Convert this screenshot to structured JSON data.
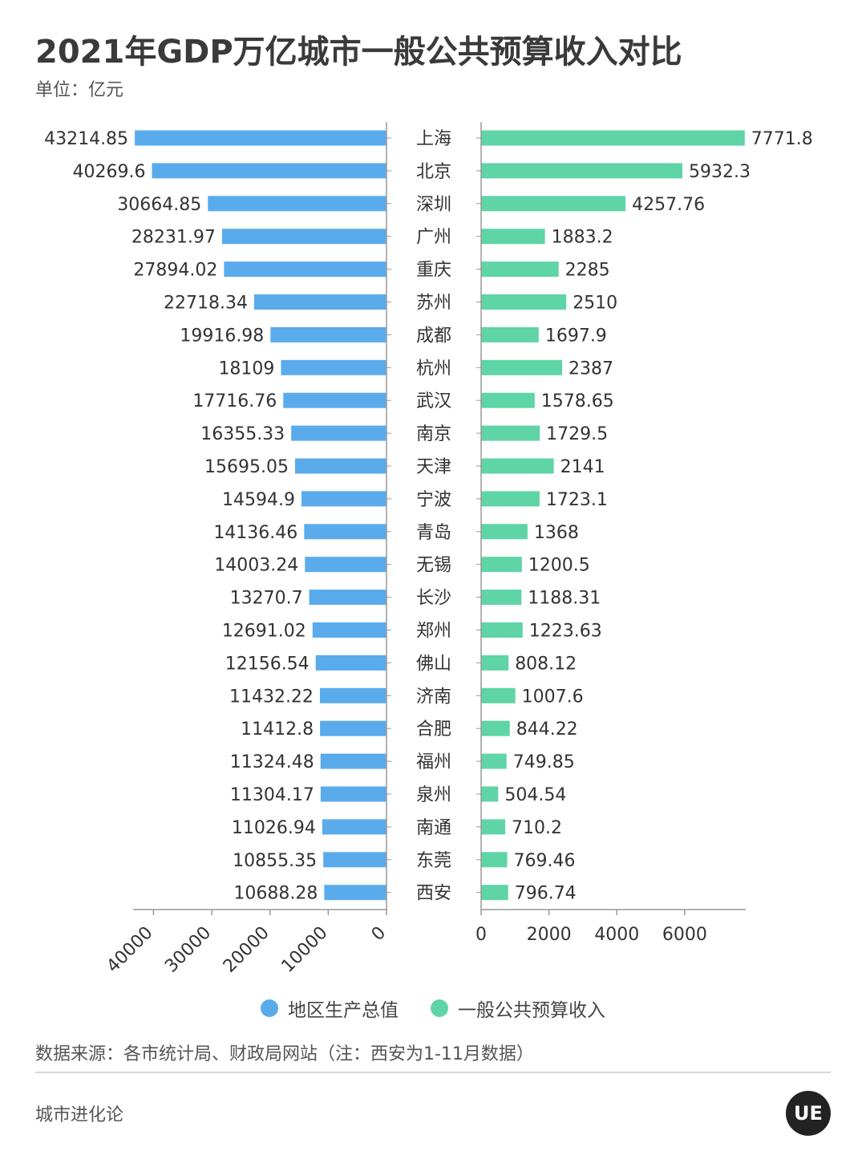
{
  "header": {
    "title": "2021年GDP万亿城市一般公共预算收入对比",
    "unit": "单位：亿元"
  },
  "chart_data": {
    "type": "bar",
    "orientation": "horizontal-butterfly",
    "categories": [
      "上海",
      "北京",
      "深圳",
      "广州",
      "重庆",
      "苏州",
      "成都",
      "杭州",
      "武汉",
      "南京",
      "天津",
      "宁波",
      "青岛",
      "无锡",
      "长沙",
      "郑州",
      "佛山",
      "济南",
      "合肥",
      "福州",
      "泉州",
      "南通",
      "东莞",
      "西安"
    ],
    "series": [
      {
        "name": "地区生产总值",
        "color": "#5aabeb",
        "values": [
          43214.85,
          40269.6,
          30664.85,
          28231.97,
          27894.02,
          22718.34,
          19916.98,
          18109,
          17716.76,
          16355.33,
          15695.05,
          14594.9,
          14136.46,
          14003.24,
          13270.7,
          12691.02,
          12156.54,
          11432.22,
          11412.8,
          11324.48,
          11304.17,
          11026.94,
          10855.35,
          10688.28
        ],
        "labels": [
          "43214.85",
          "40269.6",
          "30664.85",
          "28231.97",
          "27894.02",
          "22718.34",
          "19916.98",
          "18109",
          "17716.76",
          "16355.33",
          "15695.05",
          "14594.9",
          "14136.46",
          "14003.24",
          "13270.7",
          "12691.02",
          "12156.54",
          "11432.22",
          "11412.8",
          "11324.48",
          "11304.17",
          "11026.94",
          "10855.35",
          "10688.28"
        ],
        "xlim": [
          0,
          43500
        ],
        "ticks": [
          "40000",
          "30000",
          "20000",
          "10000",
          "0"
        ],
        "tick_values": [
          40000,
          30000,
          20000,
          10000,
          0
        ]
      },
      {
        "name": "一般公共预算收入",
        "color": "#5fd4a6",
        "values": [
          7771.8,
          5932.3,
          4257.76,
          1883.2,
          2285,
          2510,
          1697.9,
          2387,
          1578.65,
          1729.5,
          2141,
          1723.1,
          1368,
          1200.5,
          1188.31,
          1223.63,
          808.12,
          1007.6,
          844.22,
          749.85,
          504.54,
          710.2,
          769.46,
          796.74
        ],
        "labels": [
          "7771.8",
          "5932.3",
          "4257.76",
          "1883.2",
          "2285",
          "2510",
          "1697.9",
          "2387",
          "1578.65",
          "1729.5",
          "2141",
          "1723.1",
          "1368",
          "1200.5",
          "1188.31",
          "1223.63",
          "808.12",
          "1007.6",
          "844.22",
          "749.85",
          "504.54",
          "710.2",
          "769.46",
          "796.74"
        ],
        "xlim": [
          0,
          7800
        ],
        "ticks": [
          "0",
          "2000",
          "4000",
          "6000"
        ],
        "tick_values": [
          0,
          2000,
          4000,
          6000
        ]
      }
    ],
    "legend_position": "bottom"
  },
  "legend": {
    "gdp": "地区生产总值",
    "budget": "一般公共预算收入"
  },
  "footer": {
    "source": "数据来源：各市统计局、财政局网站（注：西安为1-11月数据）",
    "brand": "城市进化论",
    "logo": "UE"
  }
}
